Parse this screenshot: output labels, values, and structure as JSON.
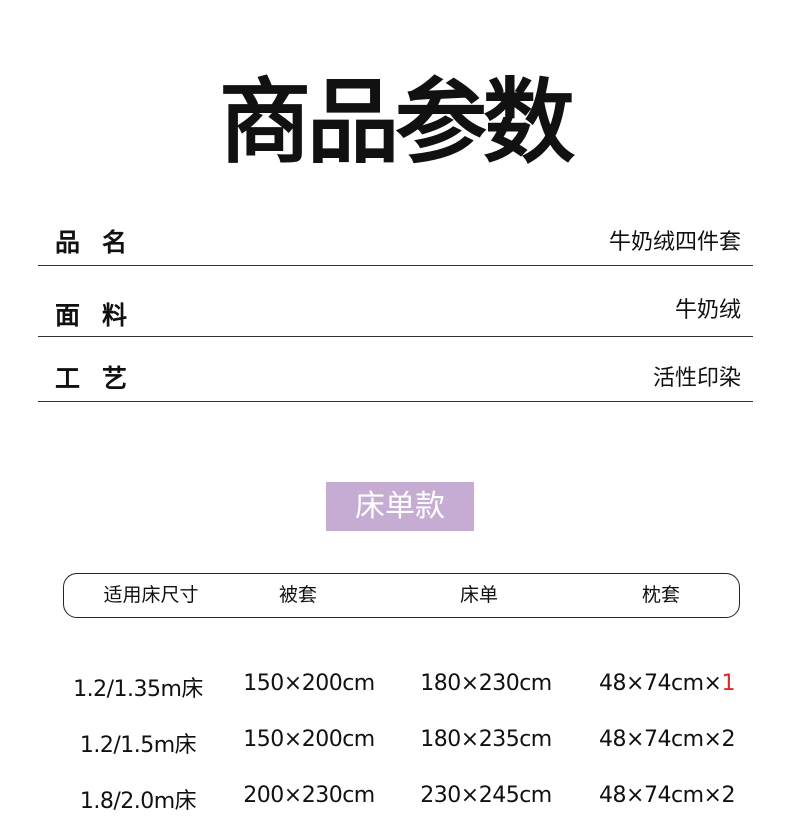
{
  "title": "商品参数",
  "params": [
    {
      "label": "品名",
      "value": "牛奶绒四件套"
    },
    {
      "label": "面料",
      "value": "牛奶绒"
    },
    {
      "label": "工艺",
      "value": "活性印染"
    }
  ],
  "section_badge": "床单款",
  "accent_color": "#c6acd3",
  "highlight_color": "#e0282a",
  "table": {
    "headers": [
      "适用床尺寸",
      "被套",
      "床单",
      "枕套"
    ],
    "rows": [
      {
        "bed": "1.2/1.35m床",
        "duvet": "150×200cm",
        "sheet": "180×230cm",
        "pillow": "48×74cm×",
        "pillow_qty": "1",
        "qty_highlight": true
      },
      {
        "bed": "1.2/1.5m床",
        "duvet": "150×200cm",
        "sheet": "180×235cm",
        "pillow": "48×74cm×",
        "pillow_qty": "2"
      },
      {
        "bed": "1.8/2.0m床",
        "duvet": "200×230cm",
        "sheet": "230×245cm",
        "pillow": "48×74cm×",
        "pillow_qty": "2"
      }
    ]
  }
}
